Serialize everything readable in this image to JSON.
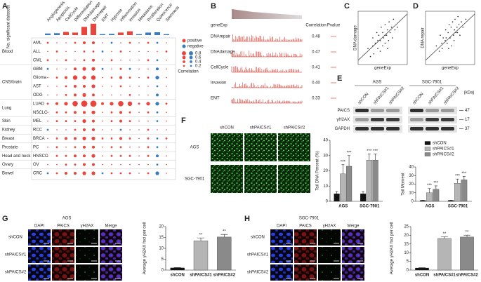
{
  "panel_labels": [
    "A",
    "B",
    "C",
    "D",
    "E",
    "F",
    "G",
    "H"
  ],
  "panel_a": {
    "ylabel": "No. significant datasets",
    "ylim": [
      0,
      4
    ],
    "highlight_color": "#e8453c",
    "positive_color": "#e8453c",
    "negative_color": "#3a7bbf",
    "columns": [
      {
        "label": "Angiogenesis",
        "count": 0.5,
        "color": "#3a7bbf"
      },
      {
        "label": "Apoptosis",
        "count": 0.6,
        "color": "#3a7bbf"
      },
      {
        "label": "CellCycle",
        "count": 1,
        "color": "#e8453c"
      },
      {
        "label": "Differentiation",
        "count": 0.8,
        "color": "#e8453c"
      },
      {
        "label": "DNAdamage",
        "count": 2.6,
        "color": "#e8453c",
        "highlight": true
      },
      {
        "label": "DNArepair",
        "count": 3.6,
        "color": "#e8453c",
        "highlight": true
      },
      {
        "label": "EMT",
        "count": 0.3,
        "color": "#3a7bbf"
      },
      {
        "label": "Hypoxia",
        "count": 0.4,
        "color": "#3a7bbf"
      },
      {
        "label": "Inflammation",
        "count": 0.8,
        "color": "#e8453c"
      },
      {
        "label": "Invasion",
        "count": 1.2,
        "color": "#e8453c"
      },
      {
        "label": "Metastasis",
        "count": 0.3,
        "color": "#3a7bbf"
      },
      {
        "label": "Proliferation",
        "count": 0.8,
        "color": "#3a7bbf"
      },
      {
        "label": "Quiescence",
        "count": 0.9,
        "color": "#3a7bbf"
      },
      {
        "label": "Stemness",
        "count": 0.3,
        "color": "#3a7bbf"
      }
    ],
    "groups": [
      {
        "name": "Blood",
        "rows": [
          {
            "label": "AML",
            "values": [
              0.1,
              0,
              0,
              0.1,
              0.2,
              0.2,
              0,
              -0.1,
              0,
              0.1,
              0,
              0.1,
              -0.1,
              0
            ]
          },
          {
            "label": "ALL",
            "values": [
              0,
              0.1,
              0,
              0,
              0.1,
              0.1,
              -0.1,
              0,
              0.1,
              0,
              0,
              0,
              0,
              0.1
            ]
          },
          {
            "label": "CML",
            "values": [
              0.1,
              0,
              0.1,
              0,
              0.1,
              0.2,
              0,
              0.1,
              0,
              0,
              0,
              0.1,
              -0.1,
              0
            ]
          }
        ]
      },
      {
        "name": "CNS/brain",
        "rows": [
          {
            "label": "GBM",
            "values": [
              -0.1,
              0,
              0,
              0.2,
              0.3,
              0.3,
              -0.1,
              0,
              0.1,
              -0.1,
              0,
              0,
              -0.2,
              0
            ]
          },
          {
            "label": "Glioma",
            "values": [
              0,
              0.1,
              0.2,
              0.4,
              0.3,
              0.4,
              0,
              0.1,
              0.2,
              0.1,
              0,
              0.1,
              -0.3,
              0
            ]
          },
          {
            "label": "AST",
            "values": [
              0,
              0,
              0.1,
              0.2,
              0.2,
              0.3,
              0,
              0,
              0.1,
              0,
              0,
              0,
              -0.1,
              0
            ]
          },
          {
            "label": "ODG",
            "values": [
              0,
              0,
              0.1,
              0.2,
              0.3,
              0.2,
              0,
              0,
              0,
              0.1,
              0,
              0,
              -0.2,
              0
            ]
          }
        ]
      },
      {
        "name": "Lung",
        "rows": [
          {
            "label": "LUAD",
            "highlight": true,
            "values": [
              0.1,
              0.2,
              0.3,
              0.5,
              0.6,
              0.6,
              0.2,
              0.3,
              0.5,
              0.4,
              0.1,
              0.3,
              -0.3,
              0.1
            ]
          },
          {
            "label": "NSCLC",
            "values": [
              0,
              0.1,
              0.1,
              0.2,
              0.2,
              0.3,
              0,
              0.1,
              0.2,
              0.1,
              0,
              0.1,
              -0.1,
              0
            ]
          }
        ]
      },
      {
        "name": "Skin",
        "rows": [
          {
            "label": "MEL",
            "values": [
              0,
              0.1,
              0.1,
              0.1,
              0.3,
              0.2,
              0,
              0.1,
              0.2,
              0.1,
              0,
              0,
              -0.1,
              0
            ]
          }
        ]
      },
      {
        "name": "Kidney",
        "rows": [
          {
            "label": "RCC",
            "values": [
              -0.1,
              0,
              0,
              0.1,
              0.2,
              0.2,
              0,
              0,
              -0.1,
              0,
              0,
              0.1,
              0,
              0
            ]
          }
        ]
      },
      {
        "name": "Breast",
        "rows": [
          {
            "label": "BRCA",
            "values": [
              0,
              0.1,
              0.2,
              0.2,
              0.3,
              0.3,
              0.1,
              0.1,
              0.2,
              0.1,
              0,
              0.1,
              -0.1,
              0.1
            ]
          }
        ]
      },
      {
        "name": "Prostate",
        "rows": [
          {
            "label": "PC",
            "values": [
              0,
              0.1,
              0,
              0.1,
              0.2,
              0.2,
              0,
              0.1,
              0.1,
              0,
              0,
              0.1,
              -0.1,
              0
            ]
          }
        ]
      },
      {
        "name": "Head and neck",
        "rows": [
          {
            "label": "HNSCC",
            "values": [
              0,
              0.1,
              0.1,
              0.2,
              0.2,
              0.3,
              0,
              0.1,
              0.1,
              0.1,
              0,
              0.1,
              -0.2,
              0
            ]
          }
        ]
      },
      {
        "name": "Ovary",
        "rows": [
          {
            "label": "OV",
            "values": [
              0,
              0,
              0.1,
              0.1,
              0.2,
              0.2,
              0,
              0,
              0,
              0,
              0,
              0,
              -0.1,
              0
            ]
          }
        ]
      },
      {
        "name": "Bowel",
        "rows": [
          {
            "label": "CRC",
            "values": [
              -0.1,
              0.1,
              0.2,
              0.2,
              0.3,
              0.3,
              -0.1,
              0.1,
              0.1,
              0.1,
              0,
              0.1,
              -0.3,
              0
            ]
          }
        ]
      }
    ],
    "legend": {
      "positive": "positive",
      "negative": "negative",
      "title": "Correlation",
      "sizes": [
        0.8,
        0.6,
        0.4,
        0.2
      ]
    }
  },
  "panel_b": {
    "header": "geneExp",
    "correlation_header": "Correlation",
    "pvalue_header": "Pvalue",
    "highlight_color": "#e8453c",
    "rows": [
      {
        "label": "DNArepair",
        "correlation": 0.48,
        "highlight": true
      },
      {
        "label": "DNAdamage",
        "correlation": 0.47,
        "highlight": true
      },
      {
        "label": "CellCycle",
        "correlation": 0.41
      },
      {
        "label": "Invasion",
        "correlation": {
          "value": 0.4,
          "label": "0.40"
        }
      },
      {
        "label": "EMT",
        "correlation": 0.33
      }
    ]
  },
  "panel_c": {
    "xlabel": "geneExp",
    "ylabel": "DNA damage",
    "xlim": [
      0,
      1
    ],
    "ylim": [
      0,
      1
    ],
    "x": [
      0.2,
      0.25,
      0.3,
      0.32,
      0.35,
      0.38,
      0.4,
      0.42,
      0.45,
      0.47,
      0.5,
      0.5,
      0.52,
      0.55,
      0.55,
      0.58,
      0.6,
      0.62,
      0.63,
      0.65,
      0.68,
      0.7,
      0.72,
      0.75,
      0.8,
      0.3,
      0.45,
      0.6,
      0.4,
      0.55
    ],
    "y": [
      0.3,
      0.15,
      0.5,
      0.2,
      0.4,
      0.6,
      0.3,
      0.55,
      0.45,
      0.7,
      0.35,
      0.6,
      0.5,
      0.75,
      0.4,
      0.55,
      0.65,
      0.45,
      0.8,
      0.6,
      0.7,
      0.5,
      0.85,
      0.65,
      0.7,
      0.35,
      0.25,
      0.3,
      0.45,
      0.55
    ]
  },
  "panel_d": {
    "xlabel": "geneExp",
    "ylabel": "DNA repair",
    "xlim": [
      0,
      1
    ],
    "ylim": [
      0,
      1
    ],
    "x": [
      0.22,
      0.28,
      0.3,
      0.34,
      0.36,
      0.4,
      0.41,
      0.44,
      0.46,
      0.48,
      0.5,
      0.52,
      0.53,
      0.55,
      0.57,
      0.59,
      0.6,
      0.62,
      0.64,
      0.66,
      0.68,
      0.7,
      0.73,
      0.76,
      0.82,
      0.33,
      0.47,
      0.58,
      0.42,
      0.65
    ],
    "y": [
      0.35,
      0.25,
      0.55,
      0.3,
      0.5,
      0.45,
      0.65,
      0.4,
      0.6,
      0.75,
      0.5,
      0.7,
      0.35,
      0.8,
      0.55,
      0.65,
      0.85,
      0.6,
      0.7,
      0.9,
      0.75,
      0.55,
      0.8,
      0.7,
      0.85,
      0.4,
      0.3,
      0.45,
      0.5,
      0.6
    ]
  },
  "panel_e": {
    "cell_lines": [
      "AGS",
      "SGC-7901"
    ],
    "lanes": [
      "shCON",
      "shPAICS#1",
      "shPAICS#2"
    ],
    "unit": "(kDa)",
    "proteins": [
      {
        "label": "PAICS",
        "kda": 47
      },
      {
        "label": "γH2AX",
        "kda": 17
      },
      {
        "label": "GAPDH",
        "kda": 37
      }
    ]
  },
  "panel_f": {
    "columns": [
      "shCON",
      "shPAICS#1",
      "shPAICS#2"
    ],
    "rows": [
      "AGS",
      "SGC-7901"
    ]
  },
  "panel_g": {
    "title": "AGS",
    "stains": [
      "DAPI",
      "PAICS",
      "γH2AX",
      "Merge"
    ],
    "rows": [
      "shCON",
      "shPAICS#1",
      "shPAICS#2"
    ]
  },
  "panel_h": {
    "title": "SGC-7901",
    "stains": [
      "DAPI",
      "PAICS",
      "γH2AX",
      "Merge"
    ],
    "rows": [
      "shCON",
      "shPAICS#1",
      "shPAICS#2"
    ]
  },
  "chart_data": [
    {
      "type": "bar",
      "ylabel": "Tail DNA Percent (%)",
      "categories": [
        "AGS",
        "SGC-7901"
      ],
      "series": [
        {
          "color": "#111111",
          "values": [
            5,
            5
          ],
          "errors": [
            1.5,
            1.5
          ]
        },
        {
          "color": "#b5b5b5",
          "values": [
            18,
            27
          ],
          "errors": [
            6,
            4
          ],
          "significance": [
            "***",
            "***"
          ]
        },
        {
          "color": "#8a8a8a",
          "values": [
            23,
            27
          ],
          "errors": [
            7,
            4
          ],
          "significance": [
            "***",
            "***"
          ]
        }
      ],
      "ylim": [
        0,
        40
      ],
      "yticks": [
        0,
        10,
        20,
        30,
        40
      ]
    },
    {
      "type": "bar",
      "ylabel": "Tail Moment",
      "categories": [
        "AGS",
        "SGC-7901"
      ],
      "legend": true,
      "series": [
        {
          "name": "shCON",
          "color": "#111111",
          "values": [
            1,
            1
          ],
          "errors": [
            0.3,
            0.3
          ]
        },
        {
          "name": "shPAICS#1",
          "color": "#b5b5b5",
          "values": [
            10,
            21
          ],
          "errors": [
            5,
            5
          ],
          "significance": [
            "***",
            "***"
          ]
        },
        {
          "name": "shPAICS#2",
          "color": "#8a8a8a",
          "values": [
            14,
            25
          ],
          "errors": [
            4,
            4
          ],
          "significance": [
            "***",
            "***"
          ]
        }
      ],
      "ylim": [
        0,
        40
      ],
      "yticks": [
        0,
        10,
        20,
        30,
        40
      ]
    },
    {
      "type": "bar",
      "ylabel": "Average γH2AX foci per cell",
      "categories": [
        "shCON",
        "shPAICS#1",
        "shPAICS#2"
      ],
      "values": [
        1,
        13.5,
        15.2
      ],
      "errors": [
        0.2,
        1.3,
        1.2
      ],
      "colors": [
        "#111111",
        "#b5b5b5",
        "#8a8a8a"
      ],
      "significance": [
        null,
        "**",
        "**"
      ],
      "ylim": [
        0,
        20
      ],
      "yticks": [
        0,
        5,
        10,
        15,
        20
      ]
    },
    {
      "type": "bar",
      "ylabel": "Average γH2AX foci per cell",
      "categories": [
        "shCON",
        "shPAICS#1",
        "shPAICS#2"
      ],
      "values": [
        1.2,
        18.2,
        19
      ],
      "errors": [
        0.2,
        1,
        1.1
      ],
      "colors": [
        "#111111",
        "#b5b5b5",
        "#8a8a8a"
      ],
      "significance": [
        null,
        "**",
        "**"
      ],
      "ylim": [
        0,
        25
      ],
      "yticks": [
        0,
        5,
        10,
        15,
        20,
        25
      ]
    }
  ]
}
